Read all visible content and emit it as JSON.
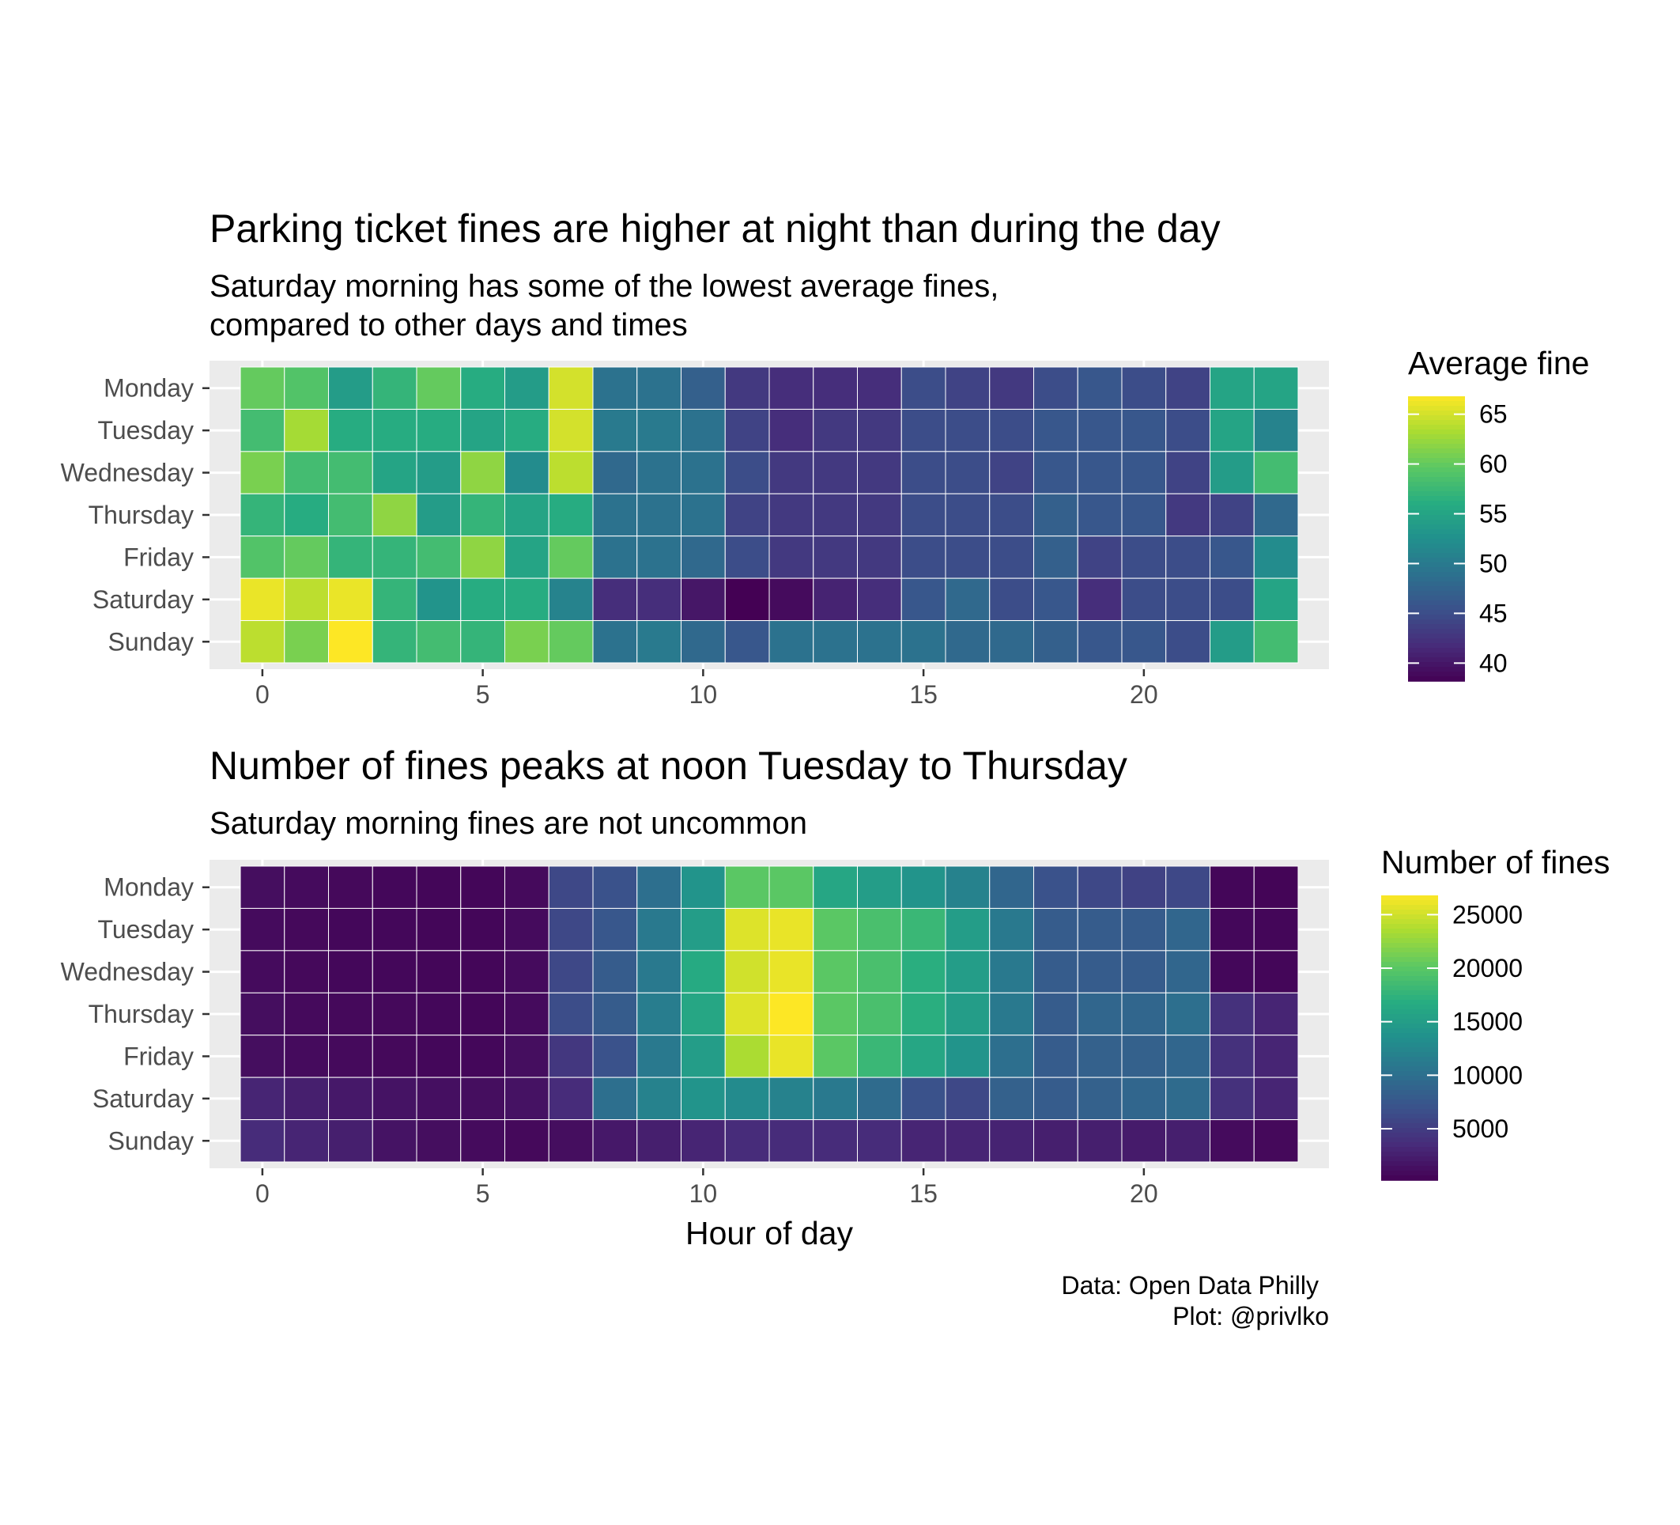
{
  "chart_data": [
    {
      "type": "heatmap",
      "title": "Parking ticket fines are higher at night than during the day",
      "subtitle_lines": [
        "Saturday morning has some of the lowest average fines,",
        "compared to other days and times"
      ],
      "xlabel": "",
      "ylabel": "",
      "x": [
        0,
        1,
        2,
        3,
        4,
        5,
        6,
        7,
        8,
        9,
        10,
        11,
        12,
        13,
        14,
        15,
        16,
        17,
        18,
        19,
        20,
        21,
        22,
        23
      ],
      "x_ticks": [
        0,
        5,
        10,
        15,
        20
      ],
      "x_tick_labels": [
        "0",
        "5",
        "10",
        "15",
        "20"
      ],
      "xlim": [
        -1.2,
        24.2
      ],
      "y": [
        "Monday",
        "Tuesday",
        "Wednesday",
        "Thursday",
        "Friday",
        "Saturday",
        "Sunday"
      ],
      "colorscale": "viridis",
      "value_range": [
        38.2,
        66.8
      ],
      "legend": {
        "title": "Average fine",
        "position": "right",
        "breaks": [
          40,
          45,
          50,
          55,
          60,
          65
        ],
        "labels": [
          "40",
          "45",
          "50",
          "55",
          "60",
          "65"
        ]
      },
      "values": [
        [
          60,
          59,
          54,
          57,
          60,
          56,
          54,
          65,
          49,
          49,
          47,
          43,
          42,
          42,
          42,
          45,
          44,
          43,
          45,
          46,
          45,
          44,
          55,
          55
        ],
        [
          58,
          63,
          56,
          56,
          56,
          55,
          56,
          65,
          50,
          50,
          49,
          44,
          42,
          43,
          43,
          45,
          45,
          45,
          46,
          46,
          46,
          45,
          55,
          51
        ],
        [
          61,
          58,
          58,
          55,
          54,
          62,
          52,
          64,
          48,
          49,
          49,
          45,
          43,
          43,
          43,
          45,
          45,
          44,
          46,
          46,
          46,
          44,
          54,
          58
        ],
        [
          57,
          56,
          58,
          62,
          54,
          57,
          55,
          56,
          49,
          49,
          49,
          44,
          43,
          43,
          43,
          45,
          45,
          45,
          47,
          46,
          46,
          43,
          44,
          48
        ],
        [
          59,
          60,
          57,
          57,
          58,
          62,
          55,
          60,
          49,
          49,
          48,
          45,
          43,
          43,
          43,
          45,
          45,
          45,
          47,
          44,
          45,
          45,
          46,
          52
        ],
        [
          66,
          64,
          66,
          57,
          53,
          56,
          56,
          51,
          42,
          42,
          40,
          38,
          39,
          41,
          42,
          46,
          48,
          45,
          46,
          42,
          45,
          45,
          45,
          55
        ],
        [
          64,
          61,
          67,
          57,
          58,
          57,
          61,
          60,
          49,
          50,
          48,
          46,
          49,
          49,
          49,
          49,
          48,
          48,
          47,
          46,
          46,
          45,
          54,
          58
        ]
      ]
    },
    {
      "type": "heatmap",
      "title": "Number of fines peaks at noon Tuesday to Thursday",
      "subtitle_lines": [
        "Saturday morning fines are not uncommon"
      ],
      "xlabel": "Hour of day",
      "ylabel": "",
      "x": [
        0,
        1,
        2,
        3,
        4,
        5,
        6,
        7,
        8,
        9,
        10,
        11,
        12,
        13,
        14,
        15,
        16,
        17,
        18,
        19,
        20,
        21,
        22,
        23
      ],
      "x_ticks": [
        0,
        5,
        10,
        15,
        20
      ],
      "x_tick_labels": [
        "0",
        "5",
        "10",
        "15",
        "20"
      ],
      "xlim": [
        -1.2,
        24.2
      ],
      "y": [
        "Monday",
        "Tuesday",
        "Wednesday",
        "Thursday",
        "Friday",
        "Saturday",
        "Sunday"
      ],
      "colorscale": "viridis",
      "value_range": [
        200,
        26800
      ],
      "legend": {
        "title": "Number of fines",
        "position": "right",
        "breaks": [
          5000,
          10000,
          15000,
          20000,
          25000
        ],
        "labels": [
          "5000",
          "10000",
          "15000",
          "20000",
          "25000"
        ]
      },
      "values": [
        [
          1200,
          1000,
          800,
          700,
          600,
          600,
          900,
          6000,
          7000,
          10000,
          14000,
          20000,
          20000,
          16000,
          15000,
          14000,
          12000,
          9000,
          7000,
          6000,
          5500,
          6000,
          600,
          500
        ],
        [
          1000,
          800,
          700,
          700,
          600,
          600,
          1000,
          6000,
          7500,
          11000,
          15000,
          25500,
          26000,
          20000,
          19000,
          18000,
          15000,
          11000,
          8000,
          8000,
          8000,
          9000,
          700,
          600
        ],
        [
          1000,
          800,
          700,
          700,
          600,
          600,
          1000,
          6000,
          8000,
          11000,
          16500,
          25000,
          26000,
          20000,
          19000,
          17000,
          15000,
          11000,
          8000,
          8000,
          8000,
          9000,
          700,
          600
        ],
        [
          1200,
          900,
          800,
          800,
          700,
          600,
          1000,
          6500,
          8000,
          11500,
          16000,
          25500,
          26800,
          20000,
          19000,
          17000,
          15000,
          11000,
          8000,
          9000,
          9000,
          10000,
          4000,
          3000
        ],
        [
          1200,
          1000,
          900,
          800,
          700,
          700,
          1200,
          4500,
          7000,
          11000,
          15000,
          23500,
          26000,
          20000,
          18000,
          16000,
          14000,
          10000,
          8000,
          8500,
          8500,
          9000,
          4000,
          3000
        ],
        [
          3000,
          2500,
          2000,
          1600,
          1300,
          1200,
          1500,
          3500,
          10000,
          12000,
          14000,
          13000,
          12000,
          11000,
          9500,
          7000,
          6000,
          8500,
          8000,
          8500,
          9000,
          9500,
          4000,
          3000
        ],
        [
          3500,
          3000,
          2500,
          1600,
          1200,
          1000,
          800,
          1200,
          2000,
          2500,
          3000,
          3500,
          3500,
          3500,
          3500,
          3000,
          3000,
          2800,
          2500,
          2500,
          2200,
          2500,
          1000,
          800
        ]
      ]
    }
  ],
  "caption_lines": [
    "Data: Open Data Philly",
    "Plot: @privlko"
  ]
}
